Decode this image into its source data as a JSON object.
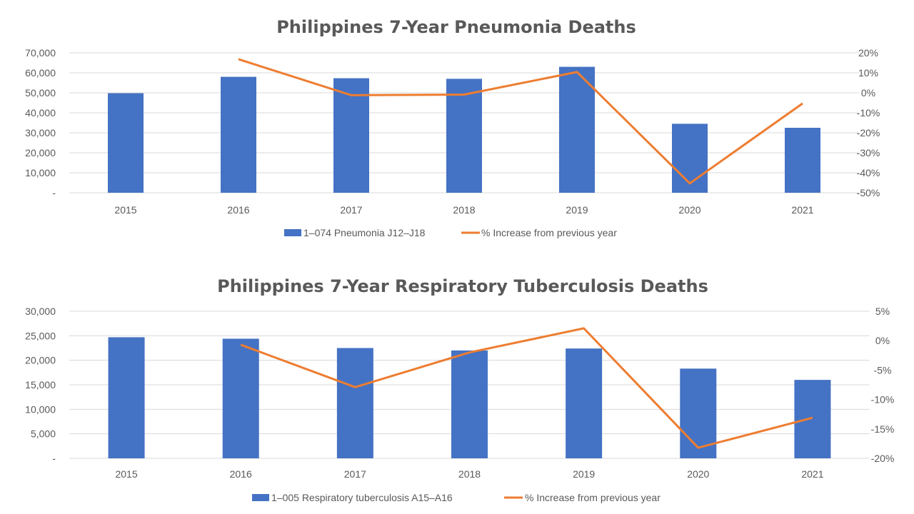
{
  "chart_data": [
    {
      "type": "bar",
      "title": "Philippines 7-Year Pneumonia Deaths",
      "categories": [
        "2015",
        "2016",
        "2017",
        "2018",
        "2019",
        "2020",
        "2021"
      ],
      "series": [
        {
          "name": "1–074 Pneumonia J12–J18",
          "type": "bar",
          "axis": "left",
          "color": "#4472C4",
          "values": [
            49800,
            58000,
            57300,
            57000,
            63000,
            34500,
            32500
          ]
        },
        {
          "name": "% Increase from previous year",
          "type": "line",
          "axis": "right",
          "color": "#ED7D31",
          "values": [
            null,
            16.8,
            -1.2,
            -0.9,
            10.4,
            -45.3,
            -5.3
          ]
        }
      ],
      "yleft": {
        "min": 0,
        "max": 70000,
        "ticks": [
          0,
          10000,
          20000,
          30000,
          40000,
          50000,
          60000,
          70000
        ],
        "tick_labels": [
          "-",
          "10,000",
          "20,000",
          "30,000",
          "40,000",
          "50,000",
          "60,000",
          "70,000"
        ]
      },
      "yright": {
        "min": -50,
        "max": 20,
        "ticks": [
          -50,
          -40,
          -30,
          -20,
          -10,
          0,
          10,
          20
        ],
        "tick_labels": [
          "-50%",
          "-40%",
          "-30%",
          "-20%",
          "-10%",
          "0%",
          "10%",
          "20%"
        ]
      },
      "grid": true,
      "legend": "bottom"
    },
    {
      "type": "bar",
      "title": "Philippines 7-Year Respiratory Tuberculosis Deaths",
      "categories": [
        "2015",
        "2016",
        "2017",
        "2018",
        "2019",
        "2020",
        "2021"
      ],
      "series": [
        {
          "name": "1–005 Respiratory tuberculosis A15–A16",
          "type": "bar",
          "axis": "left",
          "color": "#4472C4",
          "values": [
            24700,
            24400,
            22500,
            22000,
            22400,
            18300,
            16000
          ]
        },
        {
          "name": "% Increase from previous year",
          "type": "line",
          "axis": "right",
          "color": "#ED7D31",
          "values": [
            null,
            -0.7,
            -7.9,
            -2.0,
            2.1,
            -18.2,
            -13.1
          ]
        }
      ],
      "yleft": {
        "min": 0,
        "max": 30000,
        "ticks": [
          0,
          5000,
          10000,
          15000,
          20000,
          25000,
          30000
        ],
        "tick_labels": [
          "-",
          "5,000",
          "10,000",
          "15,000",
          "20,000",
          "25,000",
          "30,000"
        ]
      },
      "yright": {
        "min": -20,
        "max": 5,
        "ticks": [
          -20,
          -15,
          -10,
          -5,
          0,
          5
        ],
        "tick_labels": [
          "-20%",
          "-15%",
          "-10%",
          "-5%",
          "0%",
          "5%"
        ]
      },
      "grid": true,
      "legend": "bottom"
    }
  ]
}
